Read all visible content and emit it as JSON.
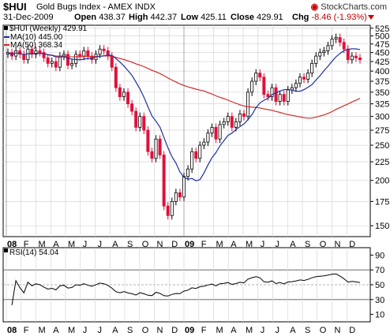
{
  "header": {
    "ticker": "$HUI",
    "full_name": "Gold Bugs Index - AMEX  INDX",
    "brand": "StockCharts.com",
    "date": "31-Dec-2009",
    "open_label": "Open",
    "open": "438.37",
    "high_label": "High",
    "high": "442.37",
    "low_label": "Low",
    "low": "425.11",
    "close_label": "Close",
    "close": "429.91",
    "chg_label": "Chg",
    "chg": "-8.46 (-1.93%)"
  },
  "legend": {
    "main": "$HUI (Weekly) 429.91",
    "ma10": "MA(10) 445.00",
    "ma50": "MA(50) 368.34",
    "rsi": "RSI(14) 54.04"
  },
  "colors": {
    "up": "#000000",
    "down": "#e0113c",
    "ma10": "#1f2f9f",
    "ma50": "#d42a2a",
    "rsi": "#000000",
    "grid": "#d6d6d6",
    "arrow": "#cc0000"
  },
  "chart_data": [
    {
      "type": "candlestick",
      "interval": "weekly",
      "x_labels": [
        "08",
        "F",
        "M",
        "A",
        "M",
        "J",
        "J",
        "A",
        "S",
        "O",
        "N",
        "D",
        "09",
        "F",
        "M",
        "A",
        "M",
        "J",
        "J",
        "A",
        "S",
        "O",
        "N",
        "D"
      ],
      "y_ticks": [
        150,
        175,
        200,
        225,
        250,
        275,
        300,
        325,
        350,
        375,
        400,
        425,
        450,
        475,
        500,
        525
      ],
      "ylim": [
        140,
        535
      ],
      "y_scale": "log",
      "closes": [
        450,
        440,
        455,
        445,
        430,
        460,
        445,
        455,
        450,
        435,
        420,
        425,
        410,
        440,
        445,
        415,
        420,
        445,
        440,
        455,
        440,
        430,
        445,
        460,
        455,
        440,
        410,
        360,
        340,
        350,
        325,
        310,
        280,
        300,
        275,
        240,
        230,
        260,
        235,
        170,
        160,
        175,
        185,
        180,
        205,
        215,
        240,
        230,
        250,
        255,
        270,
        280,
        260,
        285,
        290,
        300,
        280,
        290,
        305,
        300,
        350,
        375,
        395,
        385,
        345,
        340,
        360,
        330,
        345,
        330,
        355,
        360,
        370,
        385,
        380,
        395,
        420,
        440,
        450,
        455,
        470,
        490,
        495,
        480,
        460,
        430,
        440,
        435,
        430
      ],
      "series": [
        {
          "name": "MA(10)",
          "last": 445.0
        },
        {
          "name": "MA(50)",
          "last": 368.34
        }
      ]
    },
    {
      "type": "line",
      "name": "RSI(14)",
      "y_ticks": [
        10,
        30,
        50,
        70,
        90
      ],
      "ylim": [
        0,
        100
      ],
      "reference_lines": [
        30,
        50,
        70
      ],
      "last": 54.04
    }
  ]
}
